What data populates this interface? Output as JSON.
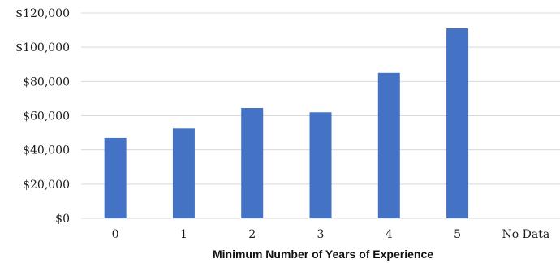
{
  "chart_data": {
    "type": "bar",
    "title": "",
    "xlabel": "Minimum Number of Years of Experience",
    "ylabel": "",
    "categories": [
      "0",
      "1",
      "2",
      "3",
      "4",
      "5",
      "No Data"
    ],
    "values": [
      47000,
      52500,
      64500,
      62000,
      85000,
      111000,
      null
    ],
    "ylim": [
      0,
      120000
    ],
    "yticks": [
      0,
      20000,
      40000,
      60000,
      80000,
      100000,
      120000
    ],
    "ytick_labels": [
      "$0",
      "$20,000",
      "$40,000",
      "$60,000",
      "$80,000",
      "$100,000",
      "$120,000"
    ],
    "bar_color": "#4472c4",
    "grid": true,
    "legend": "none"
  }
}
